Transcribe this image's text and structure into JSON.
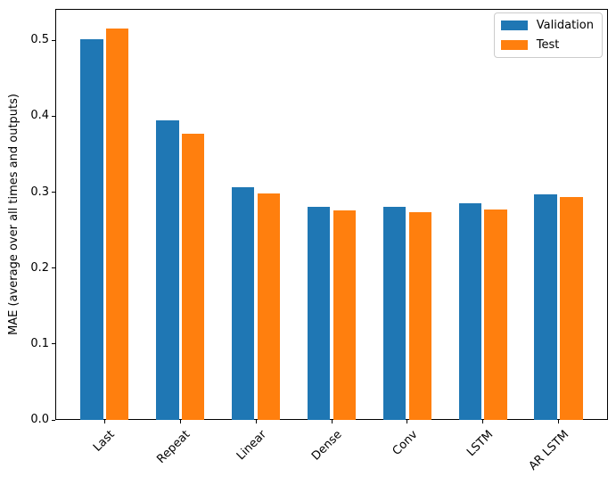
{
  "chart_data": {
    "type": "bar",
    "title": "",
    "xlabel": "",
    "ylabel": "MAE (average over all times and outputs)",
    "categories": [
      "Last",
      "Repeat",
      "Linear",
      "Dense",
      "Conv",
      "LSTM",
      "AR LSTM"
    ],
    "series": [
      {
        "name": "Validation",
        "color": "#1f77b4",
        "values": [
          0.5012,
          0.3952,
          0.3063,
          0.2807,
          0.2802,
          0.2859,
          0.2977
        ]
      },
      {
        "name": "Test",
        "color": "#ff7f0e",
        "values": [
          0.5157,
          0.3774,
          0.2983,
          0.2759,
          0.2742,
          0.2767,
          0.2941
        ]
      }
    ],
    "ylim": [
      0,
      0.5415
    ],
    "yticks": [
      0.0,
      0.1,
      0.2,
      0.3,
      0.4,
      0.5
    ],
    "ytick_labels": [
      "0.0",
      "0.1",
      "0.2",
      "0.3",
      "0.4",
      "0.5"
    ],
    "x_tick_rotation": 45,
    "grid": false,
    "legend_position": "upper right",
    "bar_width_units": 0.3,
    "bar_offset_units": 0.17
  }
}
